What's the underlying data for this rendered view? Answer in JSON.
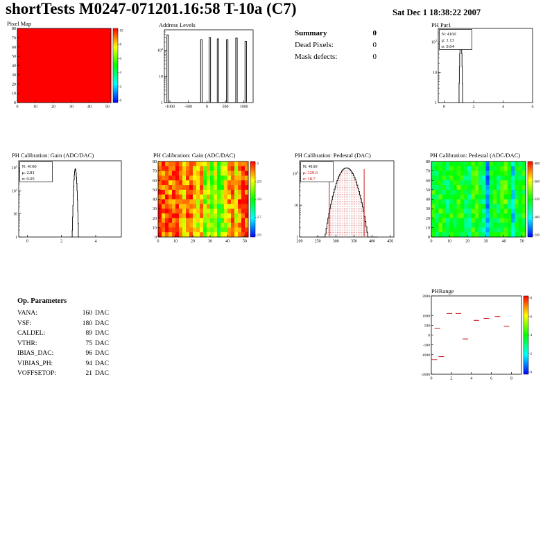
{
  "header": {
    "title": "shortTests M0247-071201.16:58 T-10a (C7)",
    "datetime": "Sat Dec  1 18:38:22 2007"
  },
  "summary": {
    "title": "Summary",
    "value": "0",
    "rows": [
      {
        "label": "Dead Pixels:",
        "value": "0"
      },
      {
        "label": "Mask defects:",
        "value": "0"
      }
    ]
  },
  "op_parameters": {
    "title": "Op. Parameters",
    "rows": [
      {
        "label": "VANA:",
        "value": "160",
        "unit": "DAC"
      },
      {
        "label": "VSF:",
        "value": "180",
        "unit": "DAC"
      },
      {
        "label": "CALDEL:",
        "value": "89",
        "unit": "DAC"
      },
      {
        "label": "VTHR:",
        "value": "75",
        "unit": "DAC"
      },
      {
        "label": "IBIAS_DAC:",
        "value": "96",
        "unit": "DAC"
      },
      {
        "label": "VIBIAS_PH:",
        "value": "94",
        "unit": "DAC"
      },
      {
        "label": "VOFFSETOP:",
        "value": "21",
        "unit": "DAC"
      }
    ]
  },
  "chart_data": [
    {
      "id": "pixel_map",
      "type": "heatmap",
      "title": "Pixel Map",
      "x": {
        "range": [
          0,
          52
        ],
        "ticks": [
          0,
          10,
          20,
          30,
          40,
          50
        ]
      },
      "y": {
        "range": [
          0,
          80
        ],
        "ticks": [
          0,
          10,
          20,
          30,
          40,
          50,
          60,
          70,
          80
        ]
      },
      "rows": 16,
      "noise": 0,
      "columns": [
        1,
        1,
        1,
        1,
        1,
        1,
        1,
        1,
        1,
        1,
        1,
        1,
        1,
        1,
        1,
        1,
        1,
        1,
        1,
        1,
        1,
        1,
        1,
        1,
        1,
        1
      ],
      "colorbar": {
        "ticks": [
          "10",
          "8",
          "6",
          "4",
          "2",
          "0"
        ]
      }
    },
    {
      "id": "address_levels",
      "type": "hist",
      "title": "Address Levels",
      "yscale": "log",
      "x": {
        "range": [
          -1150,
          1250
        ],
        "ticks": [
          -1000,
          -500,
          0,
          500,
          1000
        ]
      },
      "y": {
        "max": 600
      },
      "spike_width": 40,
      "spikes": [
        [
          -1060,
          380
        ],
        [
          -150,
          250
        ],
        [
          80,
          300
        ],
        [
          300,
          270
        ],
        [
          550,
          250
        ],
        [
          800,
          290
        ],
        [
          1050,
          220
        ]
      ]
    },
    {
      "id": "ph_par1",
      "type": "hist",
      "title": "PH Par1",
      "yscale": "log",
      "x": {
        "range": [
          -0.4,
          6
        ],
        "ticks": [
          0,
          2,
          4,
          6
        ]
      },
      "y": {
        "max": 280
      },
      "gauss": {
        "mu": 1.13,
        "sigma": 0.04,
        "peak": 190,
        "binw": 0.02
      },
      "stats": {
        "lines": [
          {
            "text": "N: 4160",
            "color": "#000000"
          },
          {
            "text": "μ: 1.13",
            "color": "#000000"
          },
          {
            "text": "σ: 0.04",
            "color": "#000000"
          }
        ]
      }
    },
    {
      "id": "gain_hist",
      "type": "hist",
      "title": "PH Calibration: Gain (ADC/DAC)",
      "yscale": "log",
      "x": {
        "range": [
          -0.5,
          5.5
        ],
        "ticks": [
          0,
          2,
          4
        ]
      },
      "y": {
        "max": 2000
      },
      "gauss": {
        "mu": 2.81,
        "sigma": 0.05,
        "peak": 900,
        "binw": 0.02
      },
      "stats": {
        "lines": [
          {
            "text": "N: 4160",
            "color": "#000000"
          },
          {
            "text": "μ: 2.81",
            "color": "#000000"
          },
          {
            "text": "σ: 0.05",
            "color": "#000000"
          }
        ]
      }
    },
    {
      "id": "gain_map",
      "type": "heatmap",
      "title": "PH Calibration: Gain (ADC/DAC)",
      "x": {
        "range": [
          0,
          52
        ],
        "ticks": [
          0,
          10,
          20,
          30,
          40,
          50
        ]
      },
      "y": {
        "range": [
          0,
          80
        ],
        "ticks": [
          0,
          10,
          20,
          30,
          40,
          50,
          60,
          70,
          80
        ]
      },
      "rows": 16,
      "noise": 0.12,
      "columns": [
        0.97,
        0.9,
        0.95,
        0.88,
        0.92,
        0.97,
        0.85,
        0.8,
        0.88,
        0.93,
        0.8,
        0.72,
        0.85,
        0.62,
        0.75,
        0.55,
        0.68,
        0.5,
        0.62,
        0.7,
        0.82,
        0.88,
        0.75,
        0.9,
        0.95,
        0.92
      ],
      "colorbar": {
        "ticks": [
          "3",
          "2.9",
          "2.8",
          "2.7",
          "2.6"
        ]
      }
    },
    {
      "id": "pedestal_hist",
      "type": "hist",
      "title": "PH Calibration: Pedestal (DAC)",
      "yscale": "log",
      "x": {
        "range": [
          200,
          460
        ],
        "ticks": [
          200,
          250,
          300,
          350,
          400,
          450
        ]
      },
      "y": {
        "max": 250
      },
      "gauss": {
        "mu": 329.6,
        "sigma": 18.7,
        "peak": 150,
        "binw": 2.5
      },
      "fill_dots": true,
      "vlines": [
        282,
        378
      ],
      "accent": "#cc0000",
      "stats": {
        "lines": [
          {
            "text": "N: 4160",
            "color": "#000000"
          },
          {
            "text": "μ: 329.6",
            "color": "#cc0000"
          },
          {
            "text": "σ: 18.7",
            "color": "#cc0000"
          }
        ]
      }
    },
    {
      "id": "pedestal_map",
      "type": "heatmap",
      "title": "PH Calibration: Pedestal (ADC/DAC)",
      "x": {
        "range": [
          0,
          52
        ],
        "ticks": [
          0,
          10,
          20,
          30,
          40,
          50
        ]
      },
      "y": {
        "range": [
          0,
          80
        ],
        "ticks": [
          0,
          10,
          20,
          30,
          40,
          50,
          60,
          70,
          80
        ]
      },
      "rows": 16,
      "noise": 0.1,
      "columns": [
        0.5,
        0.45,
        0.52,
        0.48,
        0.42,
        0.5,
        0.46,
        0.55,
        0.5,
        0.44,
        0.4,
        0.52,
        0.55,
        0.46,
        0.38,
        0.12,
        0.46,
        0.5,
        0.42,
        0.52,
        0.55,
        0.45,
        0.25,
        0.5,
        0.46,
        0.5
      ],
      "colorbar": {
        "ticks": [
          "400",
          "360",
          "320",
          "280",
          "240"
        ]
      }
    },
    {
      "id": "phrange",
      "type": "dashes",
      "title": "PHRange",
      "x": {
        "range": [
          0,
          9
        ],
        "ticks": [
          0,
          2,
          4,
          6,
          8
        ]
      },
      "y": {
        "range": [
          -2000,
          2000
        ],
        "ticks": [
          2000,
          1000,
          500,
          0,
          -500,
          -1000,
          -2000
        ]
      },
      "marker_color": "#cc2222",
      "points": [
        [
          0.6,
          350
        ],
        [
          1.8,
          1100
        ],
        [
          2.7,
          1100
        ],
        [
          3.4,
          -200
        ],
        [
          4.5,
          750
        ],
        [
          5.5,
          850
        ],
        [
          6.6,
          950
        ],
        [
          7.5,
          450
        ],
        [
          1.0,
          -1100
        ],
        [
          0.3,
          -1250
        ]
      ],
      "colorbar": {
        "ticks": [
          "8",
          "6",
          "4",
          "2",
          "0"
        ]
      }
    }
  ]
}
